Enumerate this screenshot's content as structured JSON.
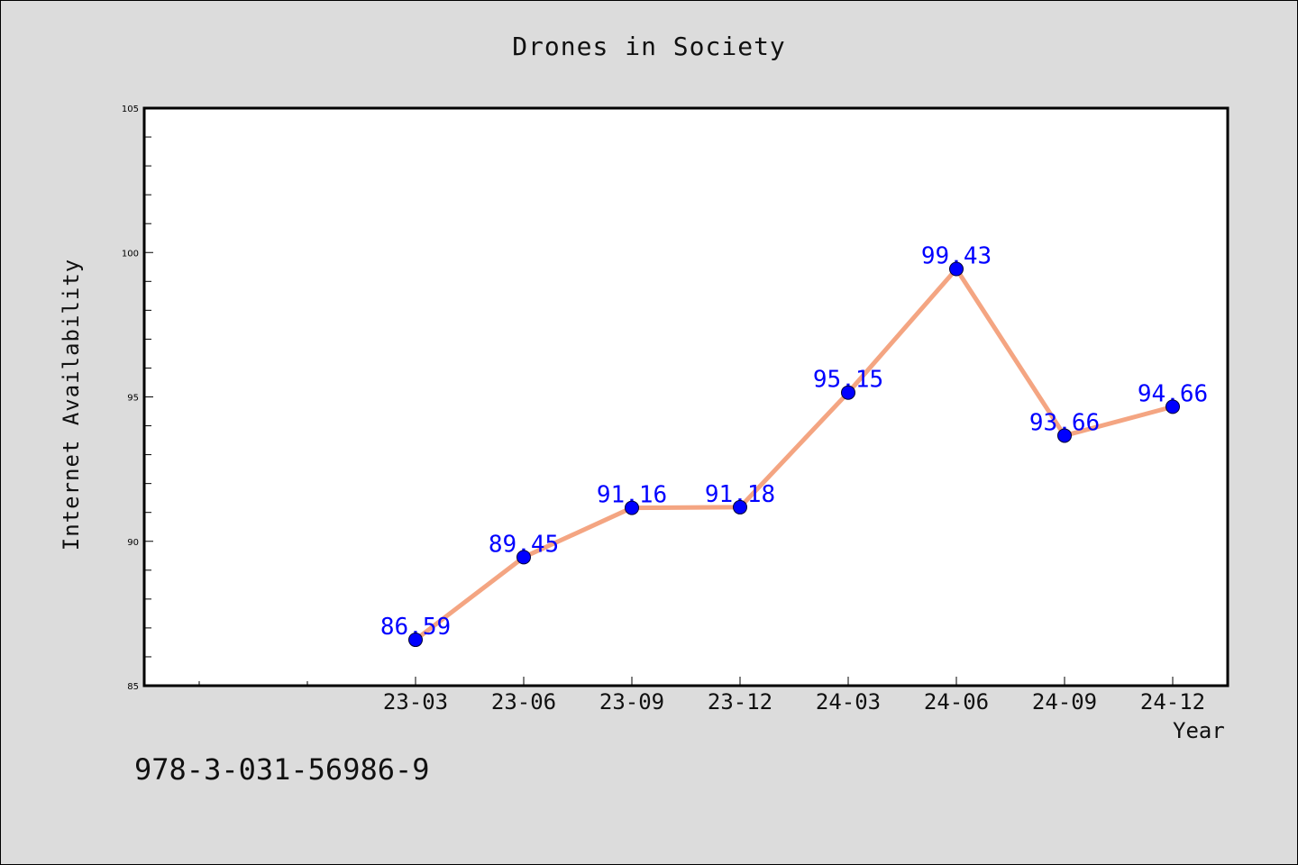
{
  "chart_data": {
    "type": "line",
    "title": "Drones in Society",
    "xlabel": "Year",
    "ylabel": "Internet Availability",
    "categories": [
      "23-03",
      "23-06",
      "23-09",
      "23-12",
      "24-03",
      "24-06",
      "24-09",
      "24-12"
    ],
    "values": [
      86.59,
      89.45,
      91.16,
      91.18,
      95.15,
      99.43,
      93.66,
      94.66
    ],
    "data_labels": [
      "86.59",
      "89.45",
      "91.16",
      "91.18",
      "95.15",
      "99.43",
      "93.66",
      "94.66"
    ],
    "ylim": [
      85,
      105
    ],
    "yticks": [
      "85",
      "90",
      "95",
      "100",
      "105"
    ],
    "grid": false,
    "colors": {
      "line": "#f4a582",
      "marker": "#0000ff",
      "label": "#0000ff"
    }
  },
  "footer": {
    "isbn": "978-3-031-56986-9"
  }
}
